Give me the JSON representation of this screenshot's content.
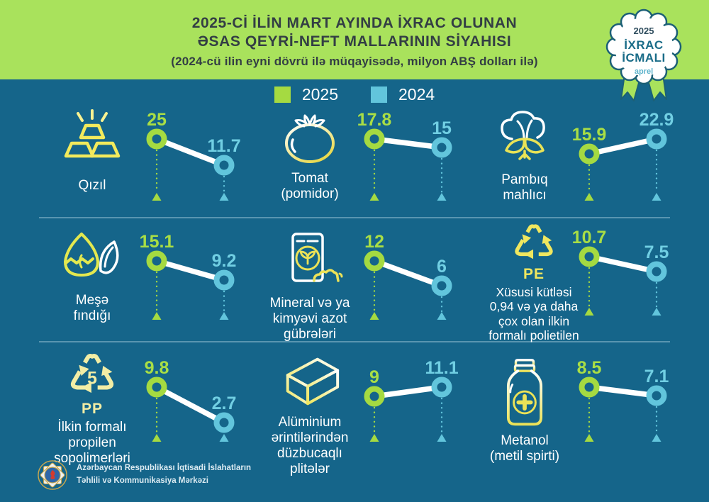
{
  "header": {
    "line1": "2025-Cİ İLİN MART AYINDA İXRAC OLUNAN",
    "line2": "ƏSAS QEYRİ-NEFT MALLARININ SİYAHISI",
    "line3": "(2024-cü ilin eyni dövrü ilə müqayisədə, milyon ABŞ dolları ilə)"
  },
  "badge": {
    "year": "2025",
    "line1": "İXRAC",
    "line2": "İCMALI",
    "month": "aprel"
  },
  "legend": [
    {
      "label": "2025",
      "color": "#a5da41"
    },
    {
      "label": "2024",
      "color": "#62c5dc"
    }
  ],
  "items": [
    {
      "icon": "gold-bars-icon",
      "label_lines": [
        "Qızıl"
      ],
      "v2025": 25,
      "v2024": 11.7,
      "d2025": "25",
      "d2024": "11.7"
    },
    {
      "icon": "tomato-icon",
      "label_lines": [
        "Tomat",
        "(pomidor)"
      ],
      "v2025": 17.8,
      "v2024": 15,
      "d2025": "17.8",
      "d2024": "15"
    },
    {
      "icon": "cotton-icon",
      "label_lines": [
        "Pambıq",
        "mahlıcı"
      ],
      "v2025": 15.9,
      "v2024": 22.9,
      "d2025": "15.9",
      "d2024": "22.9"
    },
    {
      "icon": "hazelnut-icon",
      "label_lines": [
        "Meşə",
        "fındığı"
      ],
      "v2025": 15.1,
      "v2024": 9.2,
      "d2025": "15.1",
      "d2024": "9.2"
    },
    {
      "icon": "fertilizer-bag-icon",
      "label_lines": [
        "Mineral və ya",
        "kimyəvi azot",
        "gübrələri"
      ],
      "v2025": 12,
      "v2024": 6,
      "d2025": "12",
      "d2024": "6"
    },
    {
      "icon": "recycle-pe-icon",
      "icon_text": "PE",
      "label_lines": [
        "Xüsusi kütləsi",
        "0,94 və ya daha",
        "çox olan ilkin",
        "formalı polietilen"
      ],
      "v2025": 10.7,
      "v2024": 7.5,
      "d2025": "10.7",
      "d2024": "7.5"
    },
    {
      "icon": "recycle-pp-icon",
      "icon_text": "PP",
      "icon_number": "5",
      "label_lines": [
        "İlkin formalı",
        "propilen",
        "sopolimerləri"
      ],
      "v2025": 9.8,
      "v2024": 2.7,
      "d2025": "9.8",
      "d2024": "2.7"
    },
    {
      "icon": "aluminium-plate-icon",
      "label_lines": [
        "Alüminium",
        "ərintilərindən",
        "düzbucaqlı",
        "plitələr"
      ],
      "v2025": 9,
      "v2024": 11.1,
      "d2025": "9",
      "d2024": "11.1"
    },
    {
      "icon": "methanol-bottle-icon",
      "label_lines": [
        "Metanol",
        "(metil spirti)"
      ],
      "v2025": 8.5,
      "v2024": 7.1,
      "d2025": "8.5",
      "d2024": "7.1"
    }
  ],
  "footer": {
    "line1": "Azərbaycan Respublikası İqtisadi İslahatların",
    "line2": "Təhlili və Kommunikasiya Mərkəzi"
  },
  "colors": {
    "background": "#15658a",
    "header_green": "#a9e25c",
    "green": "#a5da41",
    "blue": "#62c5dc",
    "connector": "#ffffff"
  },
  "chart_data": {
    "type": "line",
    "variant": "dumbbell-slope-small-multiples",
    "title": "2025-Cİ İLİN MART AYINDA İXRAC OLUNAN ƏSAS QEYRİ-NEFT MALLARININ SİYAHISI",
    "subtitle": "(2024-cü ilin eyni dövrü ilə müqayisədə, milyon ABŞ dolları ilə)",
    "unit": "milyon ABŞ dolları",
    "legend_position": "top-center",
    "categories": [
      "Qızıl",
      "Tomat (pomidor)",
      "Pambıq mahlıcı",
      "Meşə fındığı",
      "Mineral və ya kimyəvi azot gübrələri",
      "Xüsusi kütləsi 0,94 və ya daha çox olan ilkin formalı polietilen",
      "İlkin formalı propilen sopolimerləri",
      "Alüminium ərintilərindən düzbucaqlı plitələr",
      "Metanol (metil spirti)"
    ],
    "series": [
      {
        "name": "2025",
        "color": "#a5da41",
        "values": [
          25,
          17.8,
          15.9,
          15.1,
          12,
          10.7,
          9.8,
          9,
          8.5
        ]
      },
      {
        "name": "2024",
        "color": "#62c5dc",
        "values": [
          11.7,
          15,
          22.9,
          9.2,
          6,
          7.5,
          2.7,
          11.1,
          7.1
        ]
      }
    ]
  }
}
